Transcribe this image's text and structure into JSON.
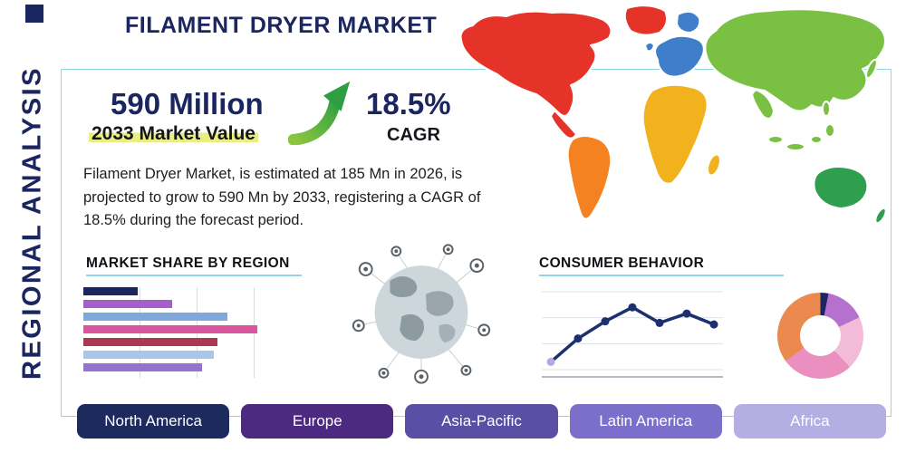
{
  "header": {
    "title": "FILAMENT DRYER MARKET",
    "side_label": "REGIONAL ANALYSIS"
  },
  "stats": {
    "market_value": "590 Million",
    "market_value_caption": "2033 Market Value",
    "cagr_value": "18.5%",
    "cagr_caption": "CAGR",
    "description": "Filament Dryer Market, is estimated at 185 Mn in 2026, is projected to grow to 590 Mn by 2033, registering a CAGR of 18.5% during the forecast period."
  },
  "sections": {
    "market_share_title": "MARKET SHARE BY REGION",
    "consumer_behavior_title": "CONSUMER BEHAVIOR"
  },
  "regions": [
    {
      "label": "North America",
      "color": "#1c2a5e"
    },
    {
      "label": "Europe",
      "color": "#4b2a7f"
    },
    {
      "label": "Asia-Pacific",
      "color": "#5a4fa5"
    },
    {
      "label": "Latin America",
      "color": "#7c6ecb"
    },
    {
      "label": "Africa",
      "color": "#b5aee2"
    }
  ],
  "map": {
    "continents": [
      {
        "name": "north-america",
        "color": "#e5332a"
      },
      {
        "name": "central-america",
        "color": "#e5332a"
      },
      {
        "name": "greenland",
        "color": "#e5332a"
      },
      {
        "name": "south-america",
        "color": "#f58220"
      },
      {
        "name": "europe",
        "color": "#3f7fc9"
      },
      {
        "name": "scandinavia",
        "color": "#3f7fc9"
      },
      {
        "name": "united-kingdom",
        "color": "#3f7fc9"
      },
      {
        "name": "africa",
        "color": "#f2b21d"
      },
      {
        "name": "madagascar",
        "color": "#f2b21d"
      },
      {
        "name": "asia",
        "color": "#7ac143"
      },
      {
        "name": "india",
        "color": "#7ac143"
      },
      {
        "name": "southeast-asia",
        "color": "#7ac143"
      },
      {
        "name": "japan",
        "color": "#7ac143"
      },
      {
        "name": "australia",
        "color": "#2f9e4f"
      },
      {
        "name": "new-zealand",
        "color": "#2f9e4f"
      }
    ]
  },
  "chart_data": [
    {
      "type": "bar",
      "title": "MARKET SHARE BY REGION",
      "orientation": "horizontal",
      "categories": [
        "",
        "",
        "",
        "",
        "",
        "",
        ""
      ],
      "values": [
        31,
        51,
        83,
        100,
        77,
        75,
        68
      ],
      "value_note": "relative width, % of longest bar; no axis labels shown",
      "colors": [
        "#1b2660",
        "#a45fc9",
        "#7fa8dc",
        "#d9559c",
        "#a93a52",
        "#a9c6ea",
        "#9572cc"
      ],
      "grid": "vertical"
    },
    {
      "type": "line",
      "title": "CONSUMER BEHAVIOR",
      "x": [
        1,
        2,
        3,
        4,
        5,
        6,
        7
      ],
      "values": [
        10,
        40,
        62,
        80,
        60,
        72,
        58
      ],
      "ylim": [
        0,
        100
      ],
      "value_note": "relative height estimates; no axis labels shown",
      "line_color": "#1c2f6e",
      "first_marker_color": "#b9a7e6",
      "grid": "horizontal"
    },
    {
      "type": "pie",
      "title": "regional share donut (unlabeled)",
      "donut": true,
      "slices": [
        {
          "value": 3,
          "color": "#1b2660"
        },
        {
          "value": 15,
          "color": "#b671cf"
        },
        {
          "value": 20,
          "color": "#f2bcd8"
        },
        {
          "value": 27,
          "color": "#ea8fc0"
        },
        {
          "value": 35,
          "color": "#ea8a4e"
        }
      ]
    }
  ],
  "accent_colors": {
    "navy": "#1b2660",
    "teal_border": "#8fd6e8",
    "arrow_green": "#2e9e44",
    "highlight_yellow": "#e2e858"
  }
}
